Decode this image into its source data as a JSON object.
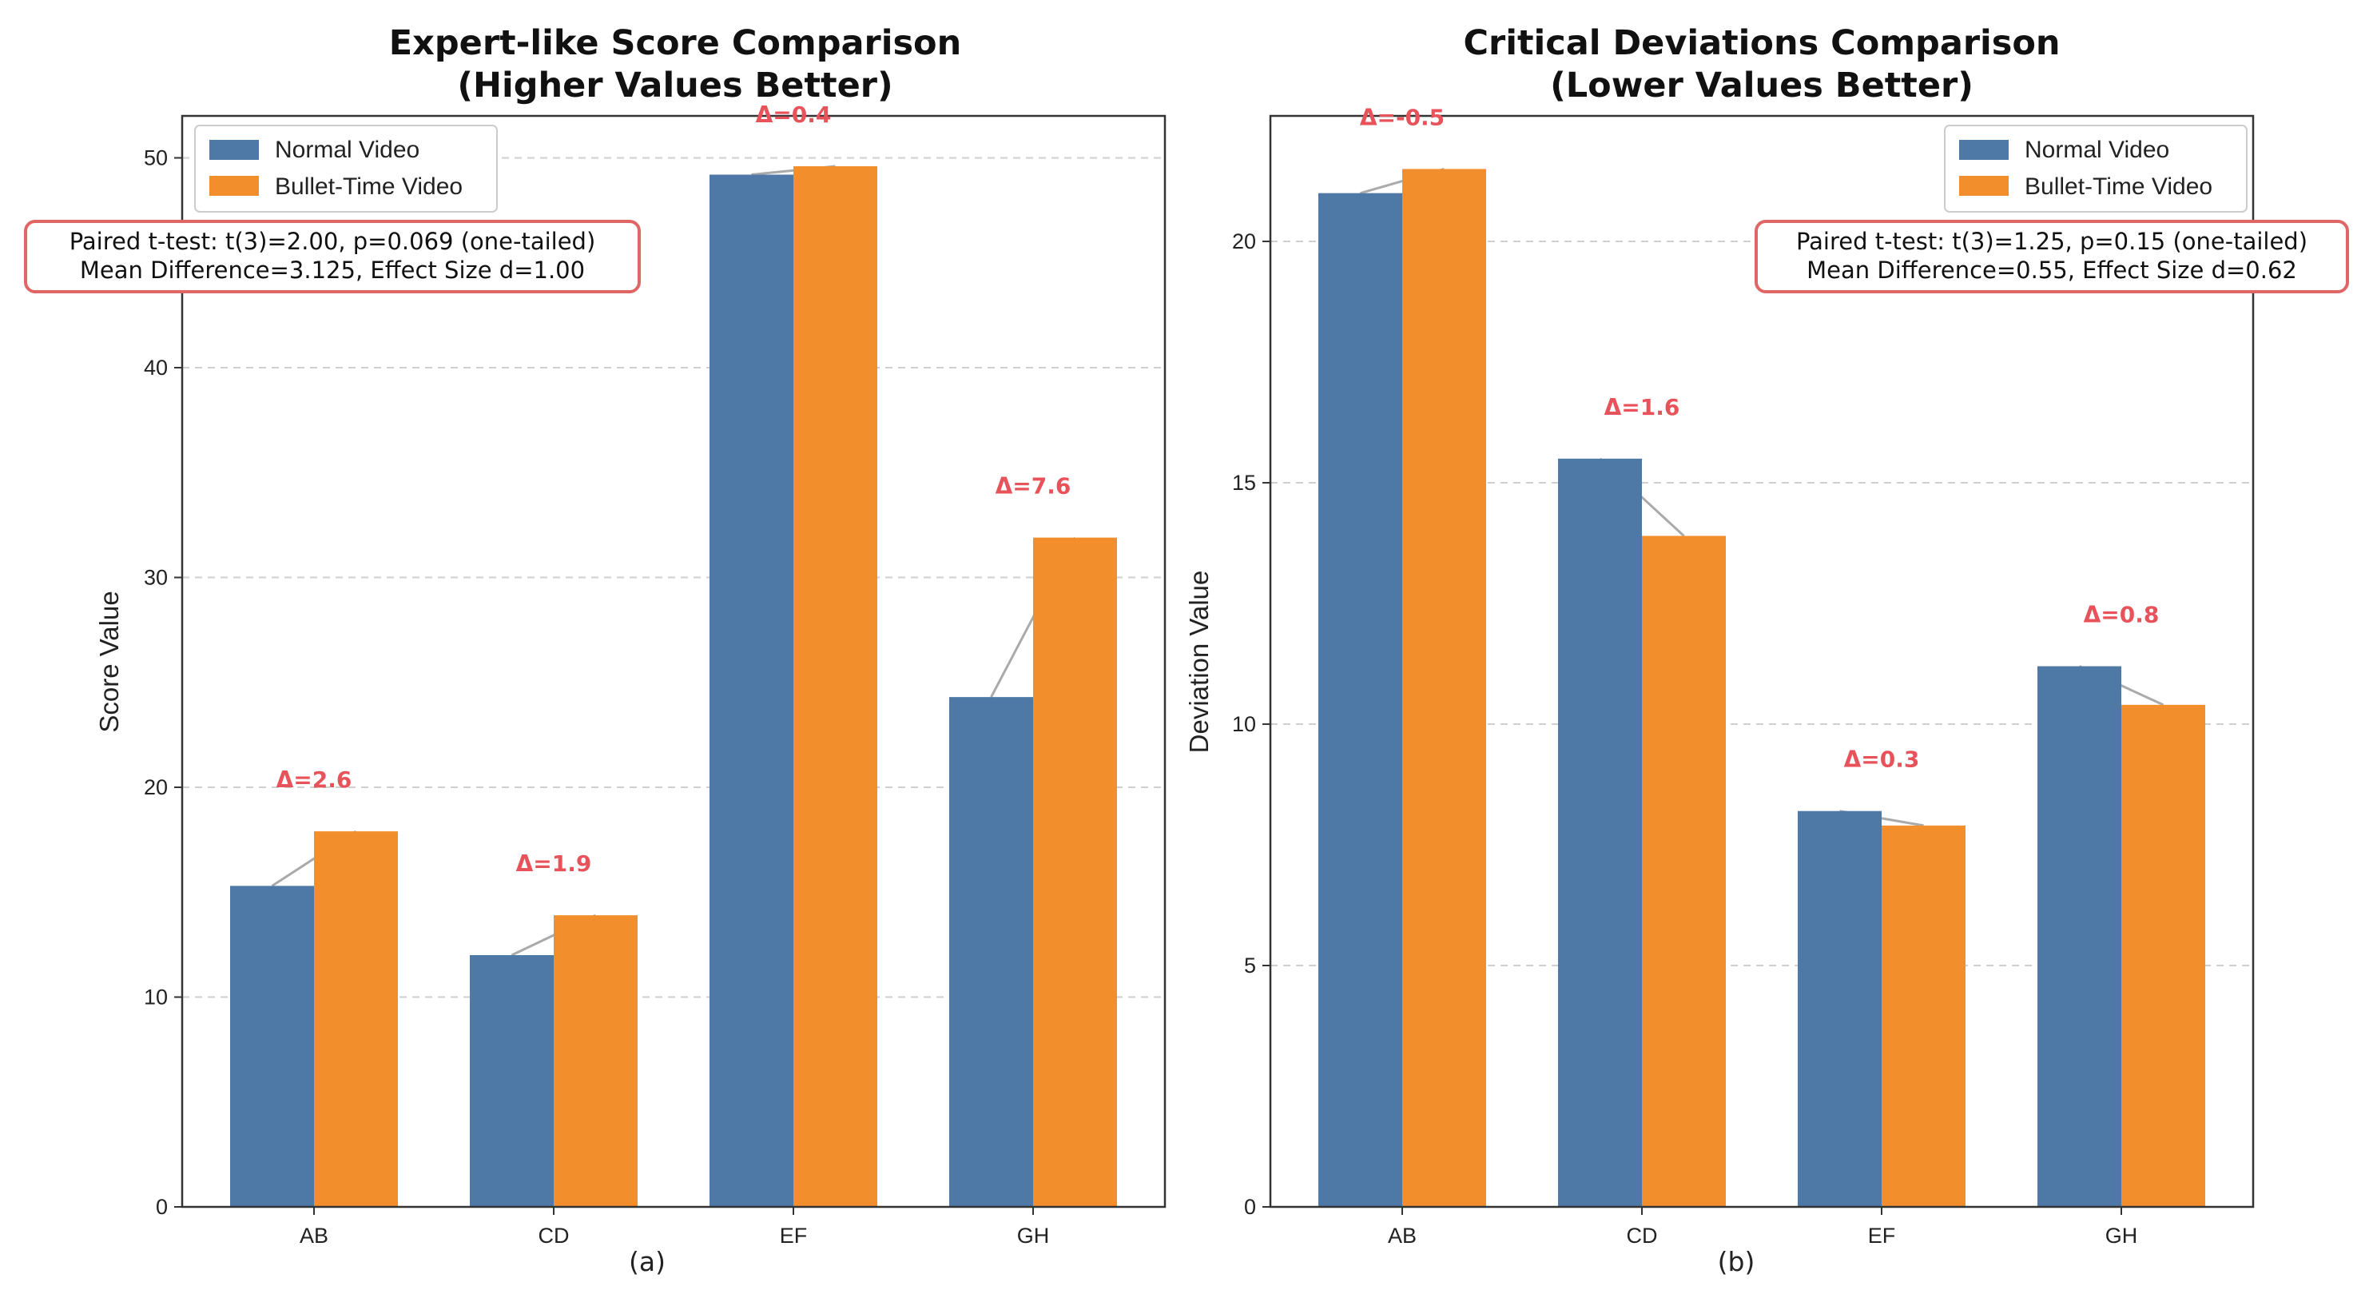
{
  "colors": {
    "normal": "#4e79a7",
    "bullet": "#f28e2b",
    "delta": "#e8525a",
    "connector": "#aaaaaa",
    "statsBorder": "#e06666"
  },
  "legend": {
    "normal": "Normal Video",
    "bullet": "Bullet-Time Video"
  },
  "chart_data": [
    {
      "type": "bar",
      "title_line1": "Expert-like Score Comparison",
      "title_line2": "(Higher Values Better)",
      "xlabel": "(a)",
      "ylabel": "Score Value",
      "ylim": [
        0,
        52
      ],
      "yticks": [
        0,
        10,
        20,
        30,
        40,
        50
      ],
      "grid": true,
      "legend_position": "upper-left",
      "categories": [
        "AB",
        "CD",
        "EF",
        "GH"
      ],
      "series": [
        {
          "name": "Normal Video",
          "values": [
            15.3,
            12.0,
            49.2,
            24.3
          ]
        },
        {
          "name": "Bullet-Time Video",
          "values": [
            17.9,
            13.9,
            49.6,
            31.9
          ]
        }
      ],
      "delta_labels": [
        "Δ=2.6",
        "Δ=1.9",
        "Δ=0.4",
        "Δ=7.6"
      ],
      "stats_line1": "Paired t-test: t(3)=2.00, p=0.069 (one-tailed)",
      "stats_line2": "Mean Difference=3.125, Effect Size d=1.00"
    },
    {
      "type": "bar",
      "title_line1": "Critical Deviations Comparison",
      "title_line2": "(Lower Values Better)",
      "xlabel": "(b)",
      "ylabel": "Deviation Value",
      "ylim": [
        0,
        22.6
      ],
      "yticks": [
        0,
        5,
        10,
        15,
        20
      ],
      "grid": true,
      "legend_position": "upper-right",
      "categories": [
        "AB",
        "CD",
        "EF",
        "GH"
      ],
      "series": [
        {
          "name": "Normal Video",
          "values": [
            21.0,
            15.5,
            8.2,
            11.2
          ]
        },
        {
          "name": "Bullet-Time Video",
          "values": [
            21.5,
            13.9,
            7.9,
            10.4
          ]
        }
      ],
      "delta_labels": [
        "Δ=-0.5",
        "Δ=1.6",
        "Δ=0.3",
        "Δ=0.8"
      ],
      "stats_line1": "Paired t-test: t(3)=1.25, p=0.15 (one-tailed)",
      "stats_line2": "Mean Difference=0.55, Effect Size d=0.62"
    }
  ]
}
